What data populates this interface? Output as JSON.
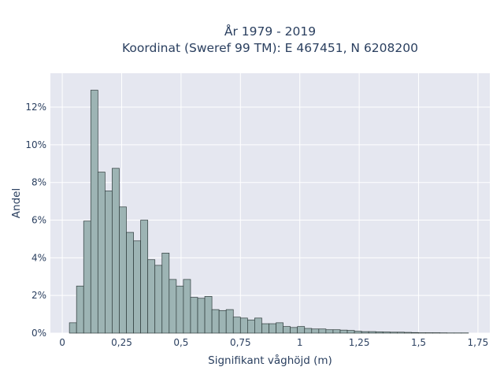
{
  "chart_data": {
    "type": "bar",
    "title": "År 1979 - 2019",
    "subtitle": "Koordinat (Sweref 99 TM): E 467451, N 6208200",
    "xlabel": "Signifikant våghöjd (m)",
    "ylabel": "Andel",
    "xlim": [
      -0.05,
      1.8
    ],
    "ylim": [
      0,
      13.8
    ],
    "bin_width": 0.03,
    "x_ticks": [
      {
        "value": 0,
        "label": "0"
      },
      {
        "value": 0.25,
        "label": "0,25"
      },
      {
        "value": 0.5,
        "label": "0,5"
      },
      {
        "value": 0.75,
        "label": "0,75"
      },
      {
        "value": 1,
        "label": "1"
      },
      {
        "value": 1.25,
        "label": "1,25"
      },
      {
        "value": 1.5,
        "label": "1,5"
      },
      {
        "value": 1.75,
        "label": "1,75"
      }
    ],
    "y_ticks": [
      {
        "value": 0,
        "label": "0%"
      },
      {
        "value": 2,
        "label": "2%"
      },
      {
        "value": 4,
        "label": "4%"
      },
      {
        "value": 6,
        "label": "6%"
      },
      {
        "value": 8,
        "label": "8%"
      },
      {
        "value": 10,
        "label": "10%"
      },
      {
        "value": 12,
        "label": "12%"
      }
    ],
    "x": [
      0.045,
      0.075,
      0.105,
      0.135,
      0.165,
      0.195,
      0.225,
      0.255,
      0.285,
      0.315,
      0.345,
      0.375,
      0.405,
      0.435,
      0.465,
      0.495,
      0.525,
      0.555,
      0.585,
      0.615,
      0.645,
      0.675,
      0.705,
      0.735,
      0.765,
      0.795,
      0.825,
      0.855,
      0.885,
      0.915,
      0.945,
      0.975,
      1.005,
      1.035,
      1.065,
      1.095,
      1.125,
      1.155,
      1.185,
      1.215,
      1.245,
      1.275,
      1.305,
      1.335,
      1.365,
      1.395,
      1.425,
      1.455,
      1.485,
      1.515,
      1.545,
      1.575,
      1.605,
      1.635,
      1.665,
      1.695
    ],
    "values": [
      0.55,
      2.5,
      5.95,
      12.9,
      8.55,
      7.55,
      8.75,
      6.7,
      5.35,
      4.9,
      6.0,
      3.9,
      3.6,
      4.25,
      2.85,
      2.5,
      2.85,
      1.9,
      1.85,
      1.95,
      1.25,
      1.2,
      1.25,
      0.85,
      0.8,
      0.7,
      0.8,
      0.5,
      0.5,
      0.55,
      0.35,
      0.3,
      0.35,
      0.25,
      0.22,
      0.22,
      0.18,
      0.18,
      0.16,
      0.14,
      0.1,
      0.08,
      0.08,
      0.07,
      0.06,
      0.05,
      0.05,
      0.04,
      0.03,
      0.02,
      0.02,
      0.02,
      0.015,
      0.01,
      0.01,
      0.01
    ],
    "colors": {
      "bar_fill": "#9db4b4",
      "bar_stroke": "#2f3c3c",
      "plot_background": "#e5e7f0",
      "grid": "#ffffff",
      "text": "#2a3f5f"
    },
    "grid": true,
    "legend": "none"
  }
}
